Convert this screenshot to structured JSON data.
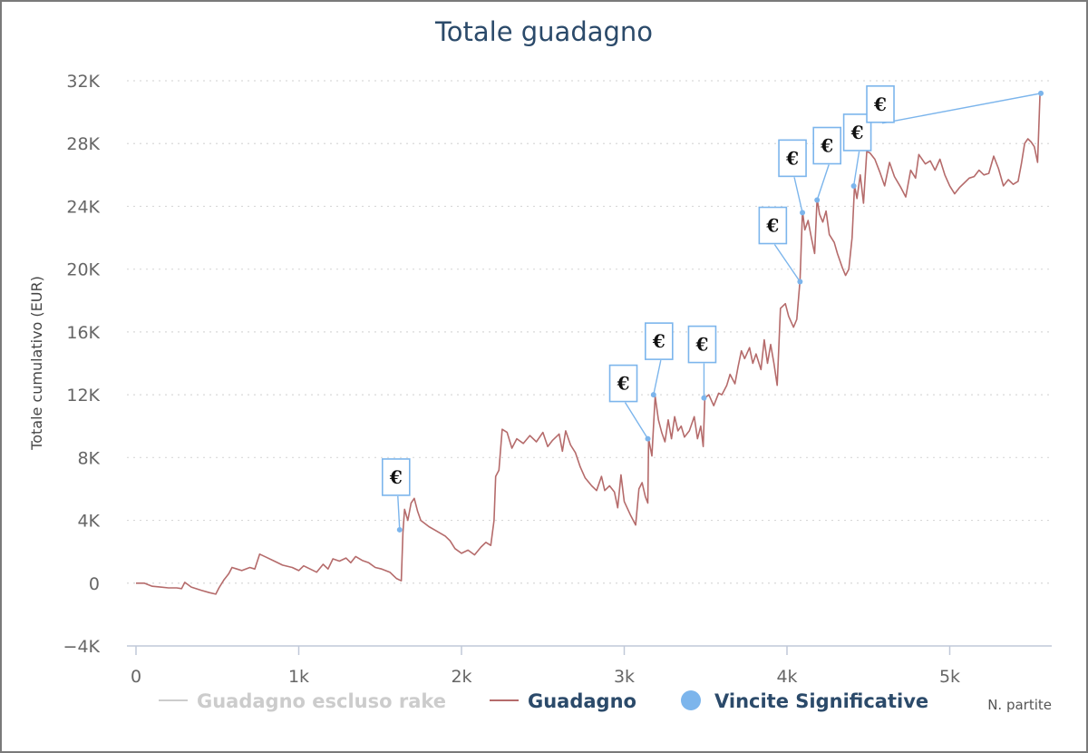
{
  "chart_data": {
    "type": "line",
    "title": "Totale guadagno",
    "ylabel": "Totale cumulativo (EUR)",
    "xlabel": "N. partite",
    "xlim": [
      -100,
      5620
    ],
    "ylim": [
      -4000,
      32000
    ],
    "y_ticks": [
      -4000,
      0,
      4000,
      8000,
      12000,
      16000,
      20000,
      24000,
      28000,
      32000
    ],
    "y_tick_labels": [
      "−4K",
      "0",
      "4K",
      "8K",
      "12K",
      "16K",
      "20K",
      "24K",
      "28K",
      "32K"
    ],
    "x_ticks": [
      0,
      1000,
      2000,
      3000,
      4000,
      5000
    ],
    "x_tick_labels": [
      "0",
      "1k",
      "2k",
      "3k",
      "4k",
      "5k"
    ],
    "grid": "horizontal-dotted",
    "legend_position": "bottom",
    "series": [
      {
        "name": "Guadagno escluso rake",
        "color": "#c8c8c8",
        "hidden": true,
        "points": []
      },
      {
        "name": "Guadagno",
        "color": "#b56b6b",
        "points": [
          [
            0,
            0
          ],
          [
            50,
            0
          ],
          [
            100,
            -200
          ],
          [
            150,
            -250
          ],
          [
            200,
            -300
          ],
          [
            250,
            -300
          ],
          [
            280,
            -350
          ],
          [
            300,
            50
          ],
          [
            340,
            -250
          ],
          [
            400,
            -450
          ],
          [
            450,
            -600
          ],
          [
            490,
            -700
          ],
          [
            510,
            -300
          ],
          [
            540,
            200
          ],
          [
            570,
            600
          ],
          [
            590,
            1000
          ],
          [
            620,
            900
          ],
          [
            650,
            800
          ],
          [
            700,
            1000
          ],
          [
            730,
            900
          ],
          [
            760,
            1850
          ],
          [
            800,
            1650
          ],
          [
            850,
            1400
          ],
          [
            900,
            1150
          ],
          [
            960,
            1000
          ],
          [
            1000,
            800
          ],
          [
            1030,
            1100
          ],
          [
            1070,
            900
          ],
          [
            1110,
            700
          ],
          [
            1150,
            1200
          ],
          [
            1180,
            900
          ],
          [
            1210,
            1550
          ],
          [
            1250,
            1400
          ],
          [
            1290,
            1600
          ],
          [
            1320,
            1300
          ],
          [
            1350,
            1700
          ],
          [
            1390,
            1450
          ],
          [
            1430,
            1300
          ],
          [
            1470,
            1000
          ],
          [
            1510,
            900
          ],
          [
            1560,
            700
          ],
          [
            1600,
            300
          ],
          [
            1630,
            150
          ],
          [
            1640,
            3200
          ],
          [
            1650,
            4700
          ],
          [
            1670,
            4000
          ],
          [
            1690,
            5100
          ],
          [
            1710,
            5400
          ],
          [
            1730,
            4600
          ],
          [
            1750,
            4000
          ],
          [
            1800,
            3600
          ],
          [
            1850,
            3300
          ],
          [
            1900,
            3000
          ],
          [
            1930,
            2700
          ],
          [
            1960,
            2200
          ],
          [
            2000,
            1900
          ],
          [
            2040,
            2100
          ],
          [
            2080,
            1800
          ],
          [
            2120,
            2300
          ],
          [
            2150,
            2600
          ],
          [
            2180,
            2400
          ],
          [
            2200,
            4000
          ],
          [
            2210,
            6800
          ],
          [
            2230,
            7200
          ],
          [
            2250,
            9800
          ],
          [
            2280,
            9600
          ],
          [
            2310,
            8600
          ],
          [
            2340,
            9200
          ],
          [
            2380,
            8900
          ],
          [
            2420,
            9400
          ],
          [
            2460,
            9000
          ],
          [
            2500,
            9600
          ],
          [
            2530,
            8700
          ],
          [
            2560,
            9100
          ],
          [
            2600,
            9500
          ],
          [
            2620,
            8400
          ],
          [
            2640,
            9700
          ],
          [
            2670,
            8800
          ],
          [
            2700,
            8300
          ],
          [
            2730,
            7400
          ],
          [
            2760,
            6700
          ],
          [
            2800,
            6200
          ],
          [
            2830,
            5900
          ],
          [
            2860,
            6800
          ],
          [
            2880,
            5900
          ],
          [
            2910,
            6200
          ],
          [
            2940,
            5800
          ],
          [
            2960,
            4800
          ],
          [
            2980,
            6900
          ],
          [
            3000,
            5200
          ],
          [
            3040,
            4300
          ],
          [
            3070,
            3700
          ],
          [
            3090,
            6000
          ],
          [
            3110,
            6400
          ],
          [
            3130,
            5500
          ],
          [
            3145,
            5100
          ],
          [
            3150,
            9200
          ],
          [
            3170,
            8100
          ],
          [
            3190,
            11900
          ],
          [
            3210,
            10400
          ],
          [
            3230,
            9600
          ],
          [
            3250,
            9000
          ],
          [
            3270,
            10400
          ],
          [
            3290,
            9200
          ],
          [
            3310,
            10600
          ],
          [
            3330,
            9700
          ],
          [
            3350,
            10000
          ],
          [
            3370,
            9300
          ],
          [
            3400,
            9700
          ],
          [
            3430,
            10600
          ],
          [
            3450,
            9200
          ],
          [
            3470,
            10000
          ],
          [
            3485,
            8700
          ],
          [
            3495,
            11800
          ],
          [
            3520,
            12000
          ],
          [
            3550,
            11300
          ],
          [
            3580,
            12100
          ],
          [
            3600,
            12000
          ],
          [
            3630,
            12600
          ],
          [
            3650,
            13300
          ],
          [
            3680,
            12700
          ],
          [
            3700,
            13800
          ],
          [
            3720,
            14800
          ],
          [
            3740,
            14300
          ],
          [
            3770,
            15000
          ],
          [
            3790,
            14000
          ],
          [
            3810,
            14600
          ],
          [
            3840,
            13600
          ],
          [
            3860,
            15500
          ],
          [
            3880,
            14000
          ],
          [
            3900,
            15200
          ],
          [
            3920,
            14000
          ],
          [
            3940,
            12600
          ],
          [
            3960,
            17500
          ],
          [
            3990,
            17800
          ],
          [
            4010,
            17000
          ],
          [
            4040,
            16300
          ],
          [
            4060,
            16800
          ],
          [
            4080,
            19300
          ],
          [
            4095,
            23700
          ],
          [
            4110,
            22500
          ],
          [
            4130,
            23100
          ],
          [
            4150,
            22000
          ],
          [
            4170,
            21000
          ],
          [
            4185,
            24500
          ],
          [
            4200,
            23500
          ],
          [
            4220,
            23000
          ],
          [
            4240,
            23700
          ],
          [
            4260,
            22200
          ],
          [
            4290,
            21700
          ],
          [
            4310,
            21000
          ],
          [
            4340,
            20100
          ],
          [
            4360,
            19600
          ],
          [
            4380,
            20000
          ],
          [
            4400,
            22000
          ],
          [
            4415,
            25300
          ],
          [
            4430,
            24500
          ],
          [
            4450,
            26000
          ],
          [
            4470,
            24200
          ],
          [
            4490,
            27500
          ],
          [
            4510,
            27400
          ],
          [
            4540,
            27000
          ],
          [
            4570,
            26200
          ],
          [
            4600,
            25300
          ],
          [
            4630,
            26800
          ],
          [
            4660,
            25900
          ],
          [
            4700,
            25200
          ],
          [
            4730,
            24600
          ],
          [
            4760,
            26300
          ],
          [
            4790,
            25800
          ],
          [
            4810,
            27300
          ],
          [
            4850,
            26700
          ],
          [
            4880,
            26900
          ],
          [
            4910,
            26300
          ],
          [
            4940,
            27000
          ],
          [
            4970,
            26000
          ],
          [
            5000,
            25300
          ],
          [
            5030,
            24800
          ],
          [
            5060,
            25200
          ],
          [
            5090,
            25500
          ],
          [
            5120,
            25800
          ],
          [
            5150,
            25900
          ],
          [
            5180,
            26300
          ],
          [
            5210,
            26000
          ],
          [
            5240,
            26100
          ],
          [
            5270,
            27200
          ],
          [
            5300,
            26400
          ],
          [
            5330,
            25300
          ],
          [
            5360,
            25700
          ],
          [
            5390,
            25400
          ],
          [
            5420,
            25600
          ],
          [
            5440,
            26700
          ],
          [
            5460,
            28000
          ],
          [
            5480,
            28300
          ],
          [
            5500,
            28100
          ],
          [
            5520,
            27800
          ],
          [
            5540,
            26800
          ],
          [
            5555,
            31200
          ]
        ]
      }
    ],
    "markers": {
      "name": "Vincite Significative",
      "color": "#7cb5ec",
      "symbol": "€",
      "points": [
        [
          1620,
          3400
        ],
        [
          3145,
          9200
        ],
        [
          3180,
          12000
        ],
        [
          3490,
          11800
        ],
        [
          4080,
          19200
        ],
        [
          4095,
          23600
        ],
        [
          4185,
          24400
        ],
        [
          4410,
          25300
        ],
        [
          5560,
          31200
        ]
      ]
    }
  }
}
